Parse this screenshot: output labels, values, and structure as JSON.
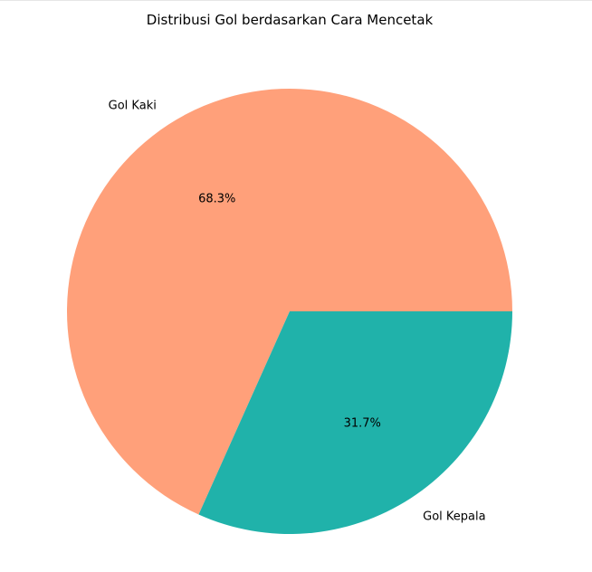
{
  "chart_data": {
    "type": "pie",
    "title": "Distribusi Gol berdasarkan Cara Mencetak",
    "categories": [
      "Gol Kaki",
      "Gol Kepala"
    ],
    "values": [
      68.3,
      31.7
    ],
    "value_labels": [
      "68.3%",
      "31.7%"
    ],
    "colors": [
      "#FFA07A",
      "#20B2AA"
    ],
    "start_angle_deg": 0,
    "direction": "counterclockwise",
    "legend": "none"
  }
}
